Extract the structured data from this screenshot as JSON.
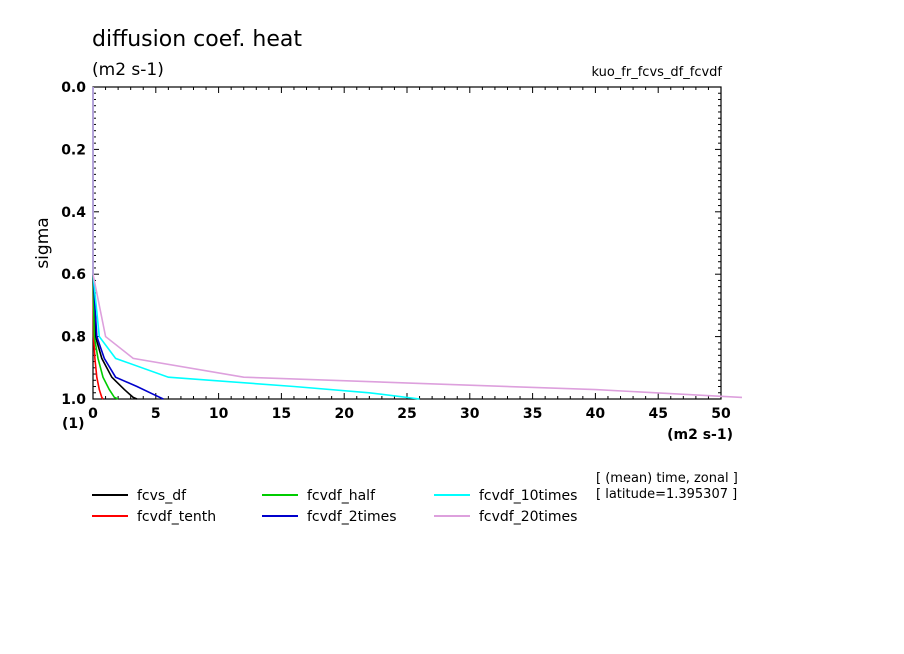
{
  "chart_data": {
    "type": "line",
    "title": "diffusion coef. heat",
    "subtitle": "(m2 s-1)",
    "experiment": "kuo_fr_fcvs_df_fcvdf",
    "xlabel": "(m2 s-1)",
    "ylabel": "sigma",
    "yunit": "(1)",
    "xlim": [
      0,
      50
    ],
    "ylim": [
      0.0,
      1.0
    ],
    "y_inverted": true,
    "xticks": [
      "0",
      "5",
      "10",
      "15",
      "20",
      "25",
      "30",
      "35",
      "40",
      "45",
      "50"
    ],
    "yticks": [
      "0.0",
      "0.2",
      "0.4",
      "0.6",
      "0.8",
      "1.0"
    ],
    "grid": false,
    "legend_position": "bottom",
    "notes": [
      "[ (mean) time, zonal ]",
      "[ latitude=1.395307 ]"
    ],
    "series": [
      {
        "name": "fcvs_df",
        "color": "#000000",
        "points": [
          [
            0,
            0.0
          ],
          [
            0,
            0.6
          ],
          [
            0.2,
            0.8
          ],
          [
            0.7,
            0.87
          ],
          [
            1.5,
            0.93
          ],
          [
            2.5,
            0.97
          ],
          [
            3.2,
            0.995
          ],
          [
            3.5,
            1.0
          ]
        ]
      },
      {
        "name": "fcvdf_tenth",
        "color": "#ff0000",
        "points": [
          [
            0,
            0.0
          ],
          [
            0,
            0.6
          ],
          [
            0.05,
            0.8
          ],
          [
            0.15,
            0.87
          ],
          [
            0.3,
            0.93
          ],
          [
            0.5,
            0.97
          ],
          [
            0.7,
            0.995
          ],
          [
            0.8,
            1.0
          ]
        ]
      },
      {
        "name": "fcvdf_half",
        "color": "#00cc00",
        "points": [
          [
            0,
            0.0
          ],
          [
            0,
            0.6
          ],
          [
            0.1,
            0.8
          ],
          [
            0.4,
            0.87
          ],
          [
            0.8,
            0.93
          ],
          [
            1.3,
            0.97
          ],
          [
            1.7,
            0.995
          ],
          [
            2.0,
            1.0
          ]
        ]
      },
      {
        "name": "fcvdf_2times",
        "color": "#0000cc",
        "points": [
          [
            0,
            0.0
          ],
          [
            0,
            0.6
          ],
          [
            0.3,
            0.8
          ],
          [
            0.9,
            0.87
          ],
          [
            1.8,
            0.93
          ],
          [
            3.5,
            0.96
          ],
          [
            4.8,
            0.985
          ],
          [
            5.6,
            1.0
          ]
        ]
      },
      {
        "name": "fcvdf_10times",
        "color": "#00ffff",
        "points": [
          [
            0,
            0.0
          ],
          [
            0,
            0.6
          ],
          [
            0.5,
            0.8
          ],
          [
            1.8,
            0.87
          ],
          [
            6.0,
            0.93
          ],
          [
            16.0,
            0.96
          ],
          [
            22.0,
            0.98
          ],
          [
            26.0,
            1.0
          ]
        ]
      },
      {
        "name": "fcvdf_20times",
        "color": "#dda0dd",
        "points": [
          [
            0,
            0.0
          ],
          [
            0,
            0.6
          ],
          [
            1.0,
            0.8
          ],
          [
            3.2,
            0.87
          ],
          [
            12.0,
            0.93
          ],
          [
            26.0,
            0.95
          ],
          [
            40.0,
            0.97
          ],
          [
            52.0,
            0.995
          ]
        ]
      }
    ]
  }
}
